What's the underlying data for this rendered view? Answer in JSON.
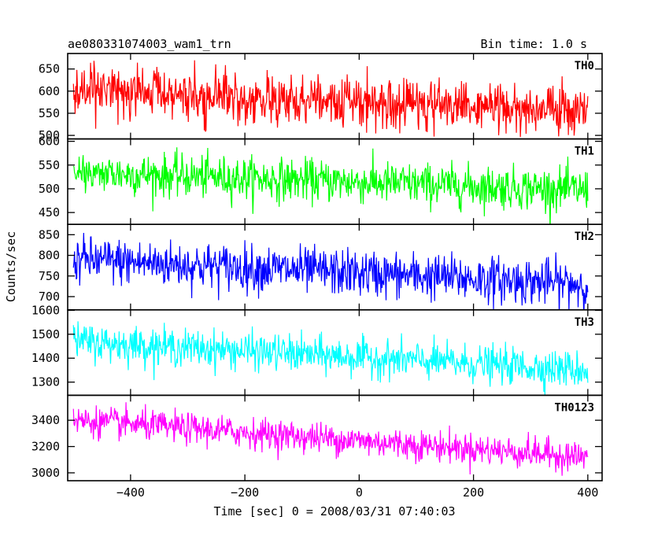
{
  "header": {
    "title": "ae080331074003_wam1_trn",
    "bin_time": "Bin time: 1.0 s"
  },
  "chart_data": {
    "type": "line",
    "xlabel": "Time [sec] 0 = 2008/03/31 07:40:03",
    "ylabel": "Counts/sec",
    "xlim": [
      -510,
      425
    ],
    "xticks": [
      -400,
      -200,
      0,
      200,
      400
    ],
    "x_range": [
      -500,
      400
    ],
    "bin_seconds": 1.0,
    "panels": [
      {
        "name": "TH0",
        "color": "#ff0000",
        "ylim": [
          492,
          685
        ],
        "yticks": [
          500,
          550,
          600,
          650
        ],
        "trend": [
          600,
          555
        ],
        "noise": 28
      },
      {
        "name": "TH1",
        "color": "#00ff00",
        "ylim": [
          425,
          605
        ],
        "yticks": [
          450,
          500,
          550,
          600
        ],
        "trend": [
          535,
          497
        ],
        "noise": 22
      },
      {
        "name": "TH2",
        "color": "#0000ff",
        "ylim": [
          668,
          875
        ],
        "yticks": [
          700,
          750,
          800,
          850
        ],
        "trend": [
          790,
          730
        ],
        "noise": 28
      },
      {
        "name": "TH3",
        "color": "#00ffff",
        "ylim": [
          1245,
          1602
        ],
        "yticks": [
          1300,
          1400,
          1500,
          1600
        ],
        "trend": [
          1470,
          1350
        ],
        "noise": 38
      },
      {
        "name": "TH0123",
        "color": "#ff00ff",
        "ylim": [
          2940,
          3590
        ],
        "yticks": [
          3000,
          3200,
          3400
        ],
        "trend": [
          3400,
          3120
        ],
        "noise": 58
      }
    ]
  }
}
